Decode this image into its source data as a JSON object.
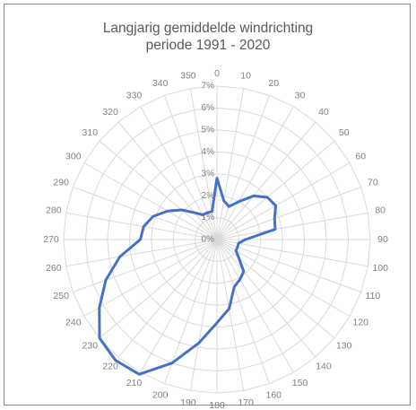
{
  "chart_data": {
    "type": "radar",
    "title_line1": "Langjarig gemiddelde windrichting",
    "title_line2": "periode 1991 - 2020",
    "categories": [
      "0",
      "10",
      "20",
      "30",
      "40",
      "50",
      "60",
      "70",
      "80",
      "90",
      "100",
      "110",
      "120",
      "130",
      "140",
      "150",
      "160",
      "170",
      "180",
      "190",
      "200",
      "210",
      "220",
      "230",
      "240",
      "250",
      "260",
      "270",
      "280",
      "290",
      "300",
      "310",
      "320",
      "330",
      "340",
      "350"
    ],
    "radial_ticks": [
      "0%",
      "1%",
      "2%",
      "3%",
      "4%",
      "5%",
      "6%",
      "7%"
    ],
    "rmax": 7,
    "grid": true,
    "series": [
      {
        "color": "#4472c4",
        "values": [
          2.8,
          1.8,
          1.6,
          2.0,
          2.6,
          3.0,
          3.1,
          2.8,
          2.7,
          1.3,
          1.0,
          1.0,
          1.0,
          1.3,
          1.9,
          2.1,
          2.3,
          3.2,
          3.8,
          4.8,
          6.0,
          7.1,
          7.2,
          7.0,
          6.2,
          5.4,
          4.5,
          3.5,
          3.4,
          3.1,
          2.6,
          2.1,
          1.6,
          1.3,
          1.3,
          1.3
        ]
      }
    ]
  },
  "colors": {
    "grid": "#d9d9d9",
    "axis_text": "#7f7f7f",
    "series": "#4472c4",
    "title": "#595959"
  }
}
